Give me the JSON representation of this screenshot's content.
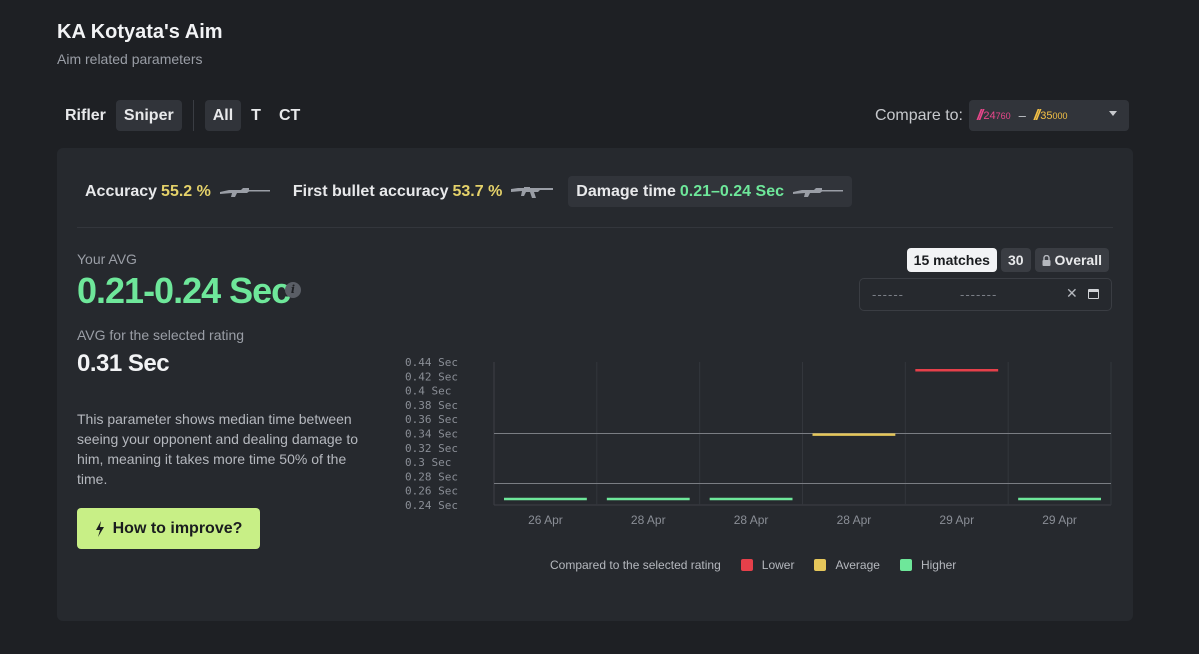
{
  "header": {
    "title": "KA Kotyata's Aim",
    "subtitle": "Aim related parameters"
  },
  "filters": {
    "weapon": [
      {
        "label": "Rifler",
        "active": false
      },
      {
        "label": "Sniper",
        "active": true
      }
    ],
    "side": [
      {
        "label": "All",
        "active": true
      },
      {
        "label": "T",
        "active": false
      },
      {
        "label": "CT",
        "active": false
      }
    ]
  },
  "compare": {
    "label": "Compare to:",
    "from": "24",
    "from_suffix": "760",
    "to": "35",
    "to_suffix": "000",
    "separator": "–"
  },
  "tabs": [
    {
      "label": "Accuracy",
      "value": "55.2 %",
      "color": "#e5d26a",
      "active": false,
      "icon": "sniper-rifle-icon"
    },
    {
      "label": "First bullet accuracy",
      "value": "53.7 %",
      "color": "#e5d26a",
      "active": false,
      "icon": "assault-rifle-icon"
    },
    {
      "label": "Damage time",
      "value": "0.21–0.24 Sec",
      "color": "#6ee79a",
      "active": true,
      "icon": "sniper-rifle-icon"
    }
  ],
  "stats": {
    "your_avg_label": "Your AVG",
    "your_avg_value": "0.21-0.24 Sec",
    "info": "i",
    "rating_label": "AVG for the selected rating",
    "rating_value": "0.31 Sec",
    "description": "This parameter shows median time between seeing your opponent and dealing damage to him, meaning it takes more time 50% of the time.",
    "improve_label": "How to improve?"
  },
  "range": {
    "options": [
      {
        "label": "15 matches",
        "active": true
      },
      {
        "label": "30",
        "active": false
      },
      {
        "label": "Overall",
        "active": false,
        "locked": true
      }
    ]
  },
  "date": {
    "start_placeholder": "------",
    "end_placeholder": "-------"
  },
  "chart_data": {
    "type": "line",
    "y_ticks": [
      "0.44 Sec",
      "0.42 Sec",
      "0.4 Sec",
      "0.38 Sec",
      "0.36 Sec",
      "0.34 Sec",
      "0.32 Sec",
      "0.3 Sec",
      "0.28 Sec",
      "0.26 Sec",
      "0.24 Sec"
    ],
    "ylim": [
      0.24,
      0.44
    ],
    "categories": [
      "26 Apr",
      "28 Apr",
      "28 Apr",
      "28 Apr",
      "29 Apr",
      "29 Apr"
    ],
    "values": [
      0.24,
      0.24,
      0.24,
      0.33,
      0.42,
      0.24
    ],
    "levels": [
      "higher",
      "higher",
      "higher",
      "average",
      "lower",
      "higher"
    ],
    "reference_lines": [
      0.34,
      0.27
    ],
    "colors": {
      "lower": "#e5404a",
      "average": "#e5c65a",
      "higher": "#6ee79a"
    }
  },
  "legend": {
    "title": "Compared to the selected rating",
    "lower": "Lower",
    "average": "Average",
    "higher": "Higher"
  }
}
